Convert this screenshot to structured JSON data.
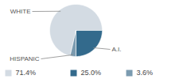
{
  "chart_data": {
    "type": "pie",
    "categories": [
      "WHITE",
      "A.I.",
      "HISPANIC"
    ],
    "values": [
      71.4,
      25.0,
      3.6
    ],
    "value_labels": [
      "71.4%",
      "25.0%",
      "3.6%"
    ],
    "colors": [
      "#d3dbe3",
      "#336a8c",
      "#7b9bb0"
    ],
    "legend": "bottom"
  }
}
